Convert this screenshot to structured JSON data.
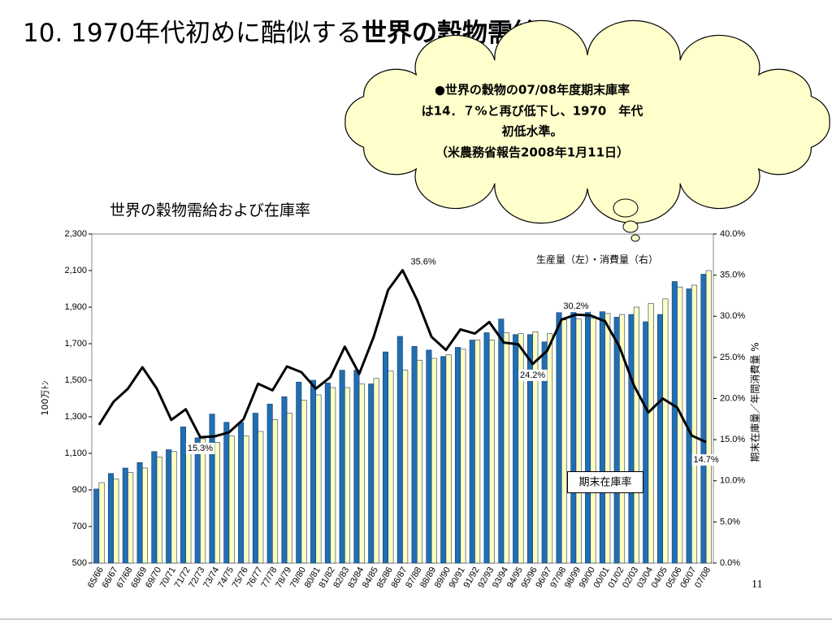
{
  "slide": {
    "title_plain": "10. 1970年代初めに酷似する",
    "title_bold": "世界の穀物需給",
    "callout": [
      "●世界の穀物の07/08年度期末庫率",
      "は14．７%と再び低下し、1970　年代",
      "初低水準。",
      "（米農務省報告2008年1月11日）"
    ],
    "page_number": "11"
  },
  "chart_data": {
    "type": "bar_line",
    "title": "世界の穀物需給および在庫率",
    "ylabel": "100万ﾄﾝ",
    "y2label": "期末在庫量／年間消費量 %",
    "legend_text": "生産量（左）・消費量（右）",
    "categories": [
      "65/66",
      "66/67",
      "67/68",
      "68/69",
      "69/70",
      "70/71",
      "71/72",
      "72/73",
      "73/74",
      "74/75",
      "75/76",
      "76/77",
      "77/78",
      "78/79",
      "79/80",
      "80/81",
      "81/82",
      "82/83",
      "83/84",
      "84/85",
      "85/86",
      "86/87",
      "87/88",
      "88/89",
      "89/90",
      "90/91",
      "91/92",
      "92/93",
      "93/94",
      "94/95",
      "95/96",
      "96/97",
      "97/98",
      "98/99",
      "99/00",
      "00/01",
      "01/02",
      "02/03",
      "03/04",
      "04/05",
      "05/06",
      "06/07",
      "07/08"
    ],
    "series": [
      {
        "color": "#1f6fb2",
        "values": [
          905,
          990,
          1020,
          1050,
          1110,
          1120,
          1245,
          1185,
          1315,
          1270,
          1270,
          1320,
          1370,
          1410,
          1490,
          1500,
          1485,
          1555,
          1555,
          1480,
          1655,
          1740,
          1685,
          1665,
          1630,
          1680,
          1720,
          1760,
          1835,
          1750,
          1750,
          1710,
          1870,
          1880,
          1880,
          1875,
          1845,
          1860,
          1820,
          1860,
          2040,
          2000,
          2080
        ]
      },
      {
        "color": "#ffffc0",
        "values": [
          940,
          960,
          995,
          1020,
          1080,
          1110,
          1140,
          1180,
          1160,
          1195,
          1195,
          1220,
          1285,
          1320,
          1390,
          1420,
          1460,
          1460,
          1480,
          1510,
          1550,
          1555,
          1610,
          1620,
          1640,
          1670,
          1720,
          1720,
          1760,
          1755,
          1765,
          1755,
          1830,
          1835,
          1840,
          1865,
          1860,
          1900,
          1920,
          1945,
          2010,
          2020,
          2100
        ]
      },
      {
        "name": "期末在庫率",
        "color": "#000000",
        "axis": "y2",
        "values": [
          16.8,
          19.6,
          21.2,
          23.8,
          21.2,
          17.4,
          18.7,
          15.3,
          15.4,
          15.9,
          17.5,
          21.8,
          21.0,
          23.9,
          23.2,
          21.2,
          22.6,
          26.3,
          23.0,
          27.5,
          33.2,
          35.6,
          32.0,
          27.5,
          25.9,
          28.4,
          27.9,
          29.3,
          26.8,
          26.6,
          24.2,
          25.8,
          29.6,
          30.2,
          30.1,
          29.4,
          26.3,
          21.6,
          18.3,
          20.0,
          18.9,
          15.5,
          14.7
        ],
        "value_labels": [
          null,
          null,
          null,
          null,
          null,
          null,
          null,
          "15.3%",
          null,
          null,
          null,
          null,
          null,
          null,
          null,
          null,
          null,
          null,
          null,
          null,
          null,
          "35.6%",
          null,
          null,
          null,
          null,
          null,
          null,
          null,
          null,
          "24.2%",
          null,
          null,
          "30.2%",
          null,
          null,
          null,
          null,
          null,
          null,
          null,
          null,
          "14.7%"
        ]
      }
    ],
    "ylim": [
      500,
      2300
    ],
    "yticks": [
      {
        "value": 2300,
        "label": "2,300"
      },
      {
        "value": 2100,
        "label": "2,100"
      },
      {
        "value": 1900,
        "label": "1,900"
      },
      {
        "value": 1700,
        "label": "1,700"
      },
      {
        "value": 1500,
        "label": "1,500"
      },
      {
        "value": 1300,
        "label": "1,300"
      },
      {
        "value": 1100,
        "label": "1,100"
      },
      900,
      700,
      500
    ],
    "y2lim": [
      0,
      40
    ],
    "y2ticks": [
      {
        "value": 40,
        "label": "40.0%"
      },
      {
        "value": 35,
        "label": "35.0%"
      },
      {
        "value": 30,
        "label": "30.0%"
      },
      {
        "value": 25,
        "label": "25.0%"
      },
      {
        "value": 20,
        "label": "20.0%"
      },
      {
        "value": 15,
        "label": "15.0%"
      },
      {
        "value": 10,
        "label": "10.0%"
      },
      {
        "value": 5,
        "label": "5.0%"
      },
      {
        "value": 0,
        "label": "0.0%"
      }
    ]
  }
}
